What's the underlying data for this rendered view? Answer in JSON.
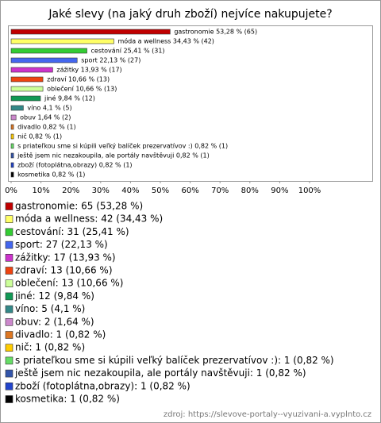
{
  "chart_data": {
    "type": "bar",
    "orientation": "horizontal",
    "title": "Jaké slevy (na jaký druh zboží) nejvíce nakupujete?",
    "categories": [
      "gastronomie",
      "móda a wellness",
      "cestování",
      "sport",
      "zážitky",
      "zdraví",
      "oblečení",
      "jiné",
      "víno",
      "obuv",
      "divadlo",
      "nič",
      "s priateľkou sme si kúpili veľký balíček prezervatívov :)",
      "ještě jsem nic nezakoupila, ale portály navštěvuji",
      "zboží (fotoplátna,obrazy)",
      "kosmetika"
    ],
    "values": [
      53.28,
      34.43,
      25.41,
      22.13,
      13.93,
      10.66,
      10.66,
      9.84,
      4.1,
      1.64,
      0.82,
      0.82,
      0.82,
      0.82,
      0.82,
      0.82
    ],
    "value_labels": [
      "gastronomie 53,28 % (65)",
      "móda a wellness 34,43 % (42)",
      "cestování 25,41 % (31)",
      "sport 22,13 % (27)",
      "zážitky 13,93 % (17)",
      "zdraví 10,66 % (13)",
      "oblečení 10,66 % (13)",
      "jiné 9,84 % (12)",
      "víno 4,1 % (5)",
      "obuv 1,64 % (2)",
      "divadlo 0,82 % (1)",
      "nič 0,82 % (1)",
      "s priateľkou sme si kúpili veľký balíček prezervatívov :) 0,82 % (1)",
      "ještě jsem nic nezakoupila, ale portály navštěvuji 0,82 % (1)",
      "zboží (fotoplátna,obrazy) 0,82 % (1)",
      "kosmetika 0,82 % (1)"
    ],
    "legend_labels": [
      "gastronomie: 65 (53,28 %)",
      "móda a wellness: 42 (34,43 %)",
      "cestování: 31 (25,41 %)",
      "sport: 27 (22,13 %)",
      "zážitky: 17 (13,93 %)",
      "zdraví: 13 (10,66 %)",
      "oblečení: 13 (10,66 %)",
      "jiné: 12 (9,84 %)",
      "víno: 5 (4,1 %)",
      "obuv: 2 (1,64 %)",
      "divadlo: 1 (0,82 %)",
      "nič: 1 (0,82 %)",
      "s priateľkou sme si kúpili veľký balíček prezervatívov :): 1 (0,82 %)",
      "ještě jsem nic nezakoupila, ale portály navštěvuji: 1 (0,82 %)",
      "zboží (fotoplátna,obrazy): 1 (0,82 %)",
      "kosmetika: 1 (0,82 %)"
    ],
    "colors": [
      "#c00000",
      "#ffff66",
      "#33cc33",
      "#4466ee",
      "#cc33cc",
      "#ee4411",
      "#ccff99",
      "#119955",
      "#338888",
      "#cc88cc",
      "#dd7722",
      "#ffcc00",
      "#66dd66",
      "#3355aa",
      "#2244cc",
      "#000000"
    ],
    "xlim": [
      0,
      100
    ],
    "xticks": [
      {
        "value": 0,
        "label": "0%"
      },
      {
        "value": 10,
        "label": "10%"
      },
      {
        "value": 20,
        "label": "20%"
      },
      {
        "value": 30,
        "label": "30%"
      },
      {
        "value": 40,
        "label": "40%"
      },
      {
        "value": 50,
        "label": "50%"
      },
      {
        "value": 60,
        "label": "60%"
      },
      {
        "value": 70,
        "label": "70%"
      },
      {
        "value": 80,
        "label": "80%"
      },
      {
        "value": 90,
        "label": "90%"
      },
      {
        "value": 100,
        "label": "100%"
      }
    ],
    "source": "zdroj: https://slevove-portaly--vyuzivani-a.vyplnto.cz"
  }
}
